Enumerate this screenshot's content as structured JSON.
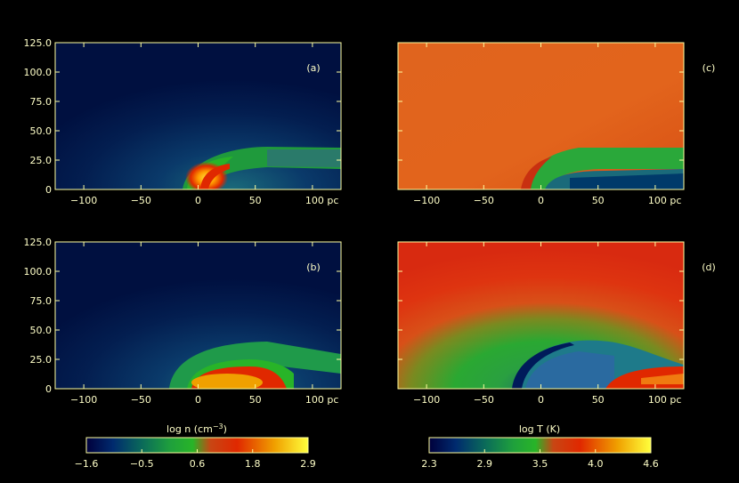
{
  "chart_data": {
    "type": "heatmap",
    "axis_color": "#ffffa0",
    "panels": [
      {
        "id": "a",
        "label": "(a)",
        "quantity": "density",
        "xticks": [
          "−100",
          "−50",
          "0",
          "50",
          "100 pc"
        ],
        "yticks": [
          "125.0",
          "100.0",
          "75.0",
          "50.0",
          "25.0",
          "0"
        ],
        "xlim": [
          -125,
          125
        ],
        "ylim": [
          0,
          125
        ]
      },
      {
        "id": "c",
        "label": "(c)",
        "quantity": "temperature",
        "xticks": [
          "−100",
          "−50",
          "0",
          "50",
          "100 pc"
        ],
        "yticks": [],
        "xlim": [
          -125,
          125
        ],
        "ylim": [
          0,
          125
        ]
      },
      {
        "id": "b",
        "label": "(b)",
        "quantity": "density",
        "xticks": [
          "−100",
          "−50",
          "0",
          "50",
          "100 pc"
        ],
        "yticks": [
          "125.0",
          "100.0",
          "75.0",
          "50.0",
          "25.0",
          "0"
        ],
        "xlim": [
          -125,
          125
        ],
        "ylim": [
          0,
          125
        ]
      },
      {
        "id": "d",
        "label": "(d)",
        "quantity": "temperature",
        "xticks": [
          "−100",
          "−50",
          "0",
          "50",
          "100 pc"
        ],
        "yticks": [],
        "xlim": [
          -125,
          125
        ],
        "ylim": [
          0,
          125
        ]
      }
    ],
    "colorbars": [
      {
        "id": "density",
        "label_main": "log n (cm",
        "label_exp": "−3",
        "label_close": ")",
        "ticks": [
          "−1.6",
          "−0.5",
          "0.6",
          "1.8",
          "2.9"
        ],
        "range": [
          -1.6,
          2.9
        ]
      },
      {
        "id": "temperature",
        "label_main": "log T (K)",
        "label_exp": "",
        "label_close": "",
        "ticks": [
          "2.3",
          "2.9",
          "3.5",
          "4.0",
          "4.6"
        ],
        "range": [
          2.3,
          4.6
        ]
      }
    ],
    "colormap": [
      "#00003c",
      "#002a6e",
      "#0a6a5a",
      "#1fa03c",
      "#28b428",
      "#c84614",
      "#e02800",
      "#f0a000",
      "#ffff3c"
    ]
  }
}
